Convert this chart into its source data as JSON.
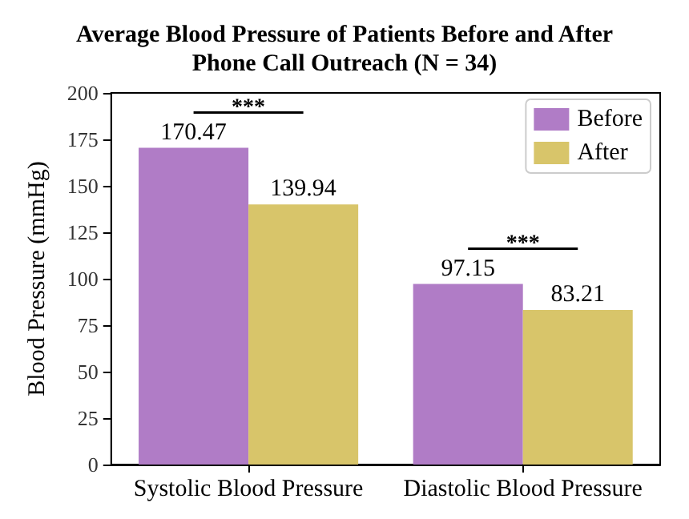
{
  "chart_data": {
    "type": "bar",
    "title": "Average Blood Pressure of Patients Before and After\nPhone Call Outreach (N = 34)",
    "ylabel": "Blood Pressure (mmHg)",
    "categories": [
      "Systolic Blood Pressure",
      "Diastolic Blood Pressure"
    ],
    "series": [
      {
        "name": "Before",
        "color": "#b07cc6",
        "values": [
          170.47,
          97.15
        ]
      },
      {
        "name": "After",
        "color": "#d8c56a",
        "values": [
          139.94,
          83.21
        ]
      }
    ],
    "ylim": [
      0,
      200
    ],
    "yticks": [
      0,
      25,
      50,
      75,
      100,
      125,
      150,
      175,
      200
    ],
    "data_labels": true,
    "grid": false,
    "legend": "top right",
    "annotations": [
      "***",
      "***"
    ]
  }
}
